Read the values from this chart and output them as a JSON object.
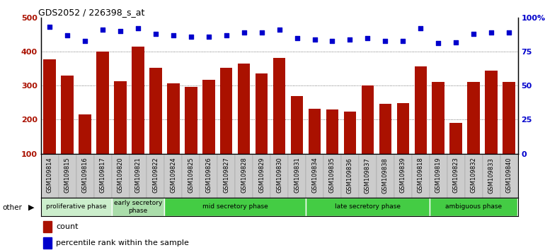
{
  "title": "GDS2052 / 226398_s_at",
  "samples": [
    "GSM109814",
    "GSM109815",
    "GSM109816",
    "GSM109817",
    "GSM109820",
    "GSM109821",
    "GSM109822",
    "GSM109824",
    "GSM109825",
    "GSM109826",
    "GSM109827",
    "GSM109828",
    "GSM109829",
    "GSM109830",
    "GSM109831",
    "GSM109834",
    "GSM109835",
    "GSM109836",
    "GSM109837",
    "GSM109838",
    "GSM109839",
    "GSM109818",
    "GSM109819",
    "GSM109823",
    "GSM109832",
    "GSM109833",
    "GSM109840"
  ],
  "counts": [
    378,
    330,
    215,
    400,
    313,
    415,
    352,
    307,
    297,
    317,
    352,
    365,
    335,
    382,
    270,
    232,
    230,
    223,
    300,
    247,
    248,
    357,
    310,
    190,
    310,
    345,
    310
  ],
  "percentile": [
    93,
    87,
    83,
    91,
    90,
    92,
    88,
    87,
    86,
    86,
    87,
    89,
    89,
    91,
    85,
    84,
    83,
    84,
    85,
    83,
    83,
    92,
    81,
    82,
    88,
    89,
    89
  ],
  "bar_color": "#aa1100",
  "dot_color": "#0000cc",
  "ylim_left": [
    100,
    500
  ],
  "ylim_right": [
    0,
    100
  ],
  "yticks_left": [
    100,
    200,
    300,
    400,
    500
  ],
  "yticks_right": [
    0,
    25,
    50,
    75,
    100
  ],
  "yticklabels_right": [
    "0",
    "25",
    "50",
    "75",
    "100%"
  ],
  "background_color": "#ffffff",
  "xtick_bg_color": "#cccccc",
  "grid_color": "#555555",
  "legend_count_label": "count",
  "legend_pct_label": "percentile rank within the sample",
  "other_label": "other",
  "phase_data": [
    {
      "label": "proliferative phase",
      "start": 0,
      "end": 4,
      "color": "#cceecc"
    },
    {
      "label": "early secretory\nphase",
      "start": 4,
      "end": 7,
      "color": "#aaddaa"
    },
    {
      "label": "mid secretory phase",
      "start": 7,
      "end": 15,
      "color": "#44cc44"
    },
    {
      "label": "late secretory phase",
      "start": 15,
      "end": 22,
      "color": "#44cc44"
    },
    {
      "label": "ambiguous phase",
      "start": 22,
      "end": 27,
      "color": "#44cc44"
    }
  ]
}
